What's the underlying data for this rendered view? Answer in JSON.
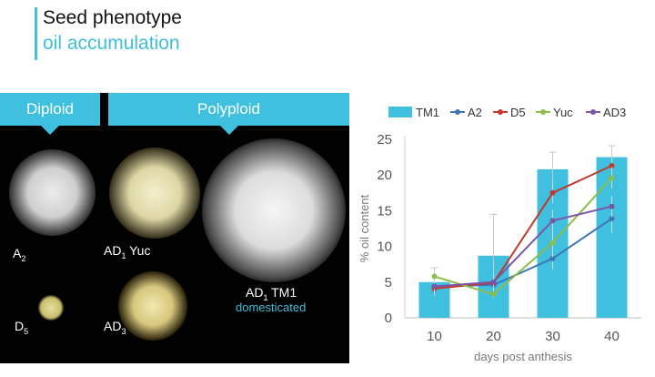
{
  "slide": {
    "title_line1": "Seed phenotype",
    "title_line2": "oil accumulation"
  },
  "photo": {
    "banner_left": "Diploid",
    "banner_right": "Polyploid",
    "labels": {
      "a2": {
        "base": "A",
        "sub": "2",
        "suffix": ""
      },
      "ad1_yuc": {
        "base": "AD",
        "sub": "1",
        "suffix": " Yuc"
      },
      "d5": {
        "base": "D",
        "sub": "5",
        "suffix": ""
      },
      "ad3": {
        "base": "AD",
        "sub": "3",
        "suffix": ""
      },
      "ad1_tm1": {
        "base": "AD",
        "sub": "1",
        "suffix": " TM1"
      }
    },
    "domesticated": "domesticated"
  },
  "chart_data": {
    "type": "bar+line",
    "x": [
      10,
      20,
      30,
      40
    ],
    "xlabel": "days post anthesis",
    "ylabel": "% oil content",
    "ylim": [
      0,
      25
    ],
    "yticks": [
      0,
      5,
      10,
      15,
      20,
      25
    ],
    "legend_position": "top",
    "bar_series": {
      "name": "TM1",
      "color": "#3ec0de",
      "values": [
        5.0,
        8.7,
        20.8,
        22.5
      ],
      "error": [
        2.0,
        5.8,
        2.4,
        1.6
      ]
    },
    "line_series": [
      {
        "name": "A2",
        "color": "#3f74b4",
        "values": [
          4.4,
          4.6,
          8.3,
          13.9
        ],
        "error": [
          1.0,
          1.5,
          1.5,
          2.0
        ]
      },
      {
        "name": "D5",
        "color": "#c0392b",
        "values": [
          4.1,
          4.9,
          17.5,
          21.3
        ],
        "error": [
          0.8,
          1.4,
          1.5,
          1.0
        ]
      },
      {
        "name": "Yuc",
        "color": "#8dbd4a",
        "values": [
          5.8,
          3.3,
          10.5,
          19.6
        ],
        "error": [
          0.8,
          0.5,
          2.0,
          1.5
        ]
      },
      {
        "name": "AD3",
        "color": "#7b56a6",
        "values": [
          4.4,
          5.0,
          13.6,
          15.6
        ],
        "error": [
          0.8,
          1.0,
          1.5,
          1.5
        ]
      }
    ]
  }
}
